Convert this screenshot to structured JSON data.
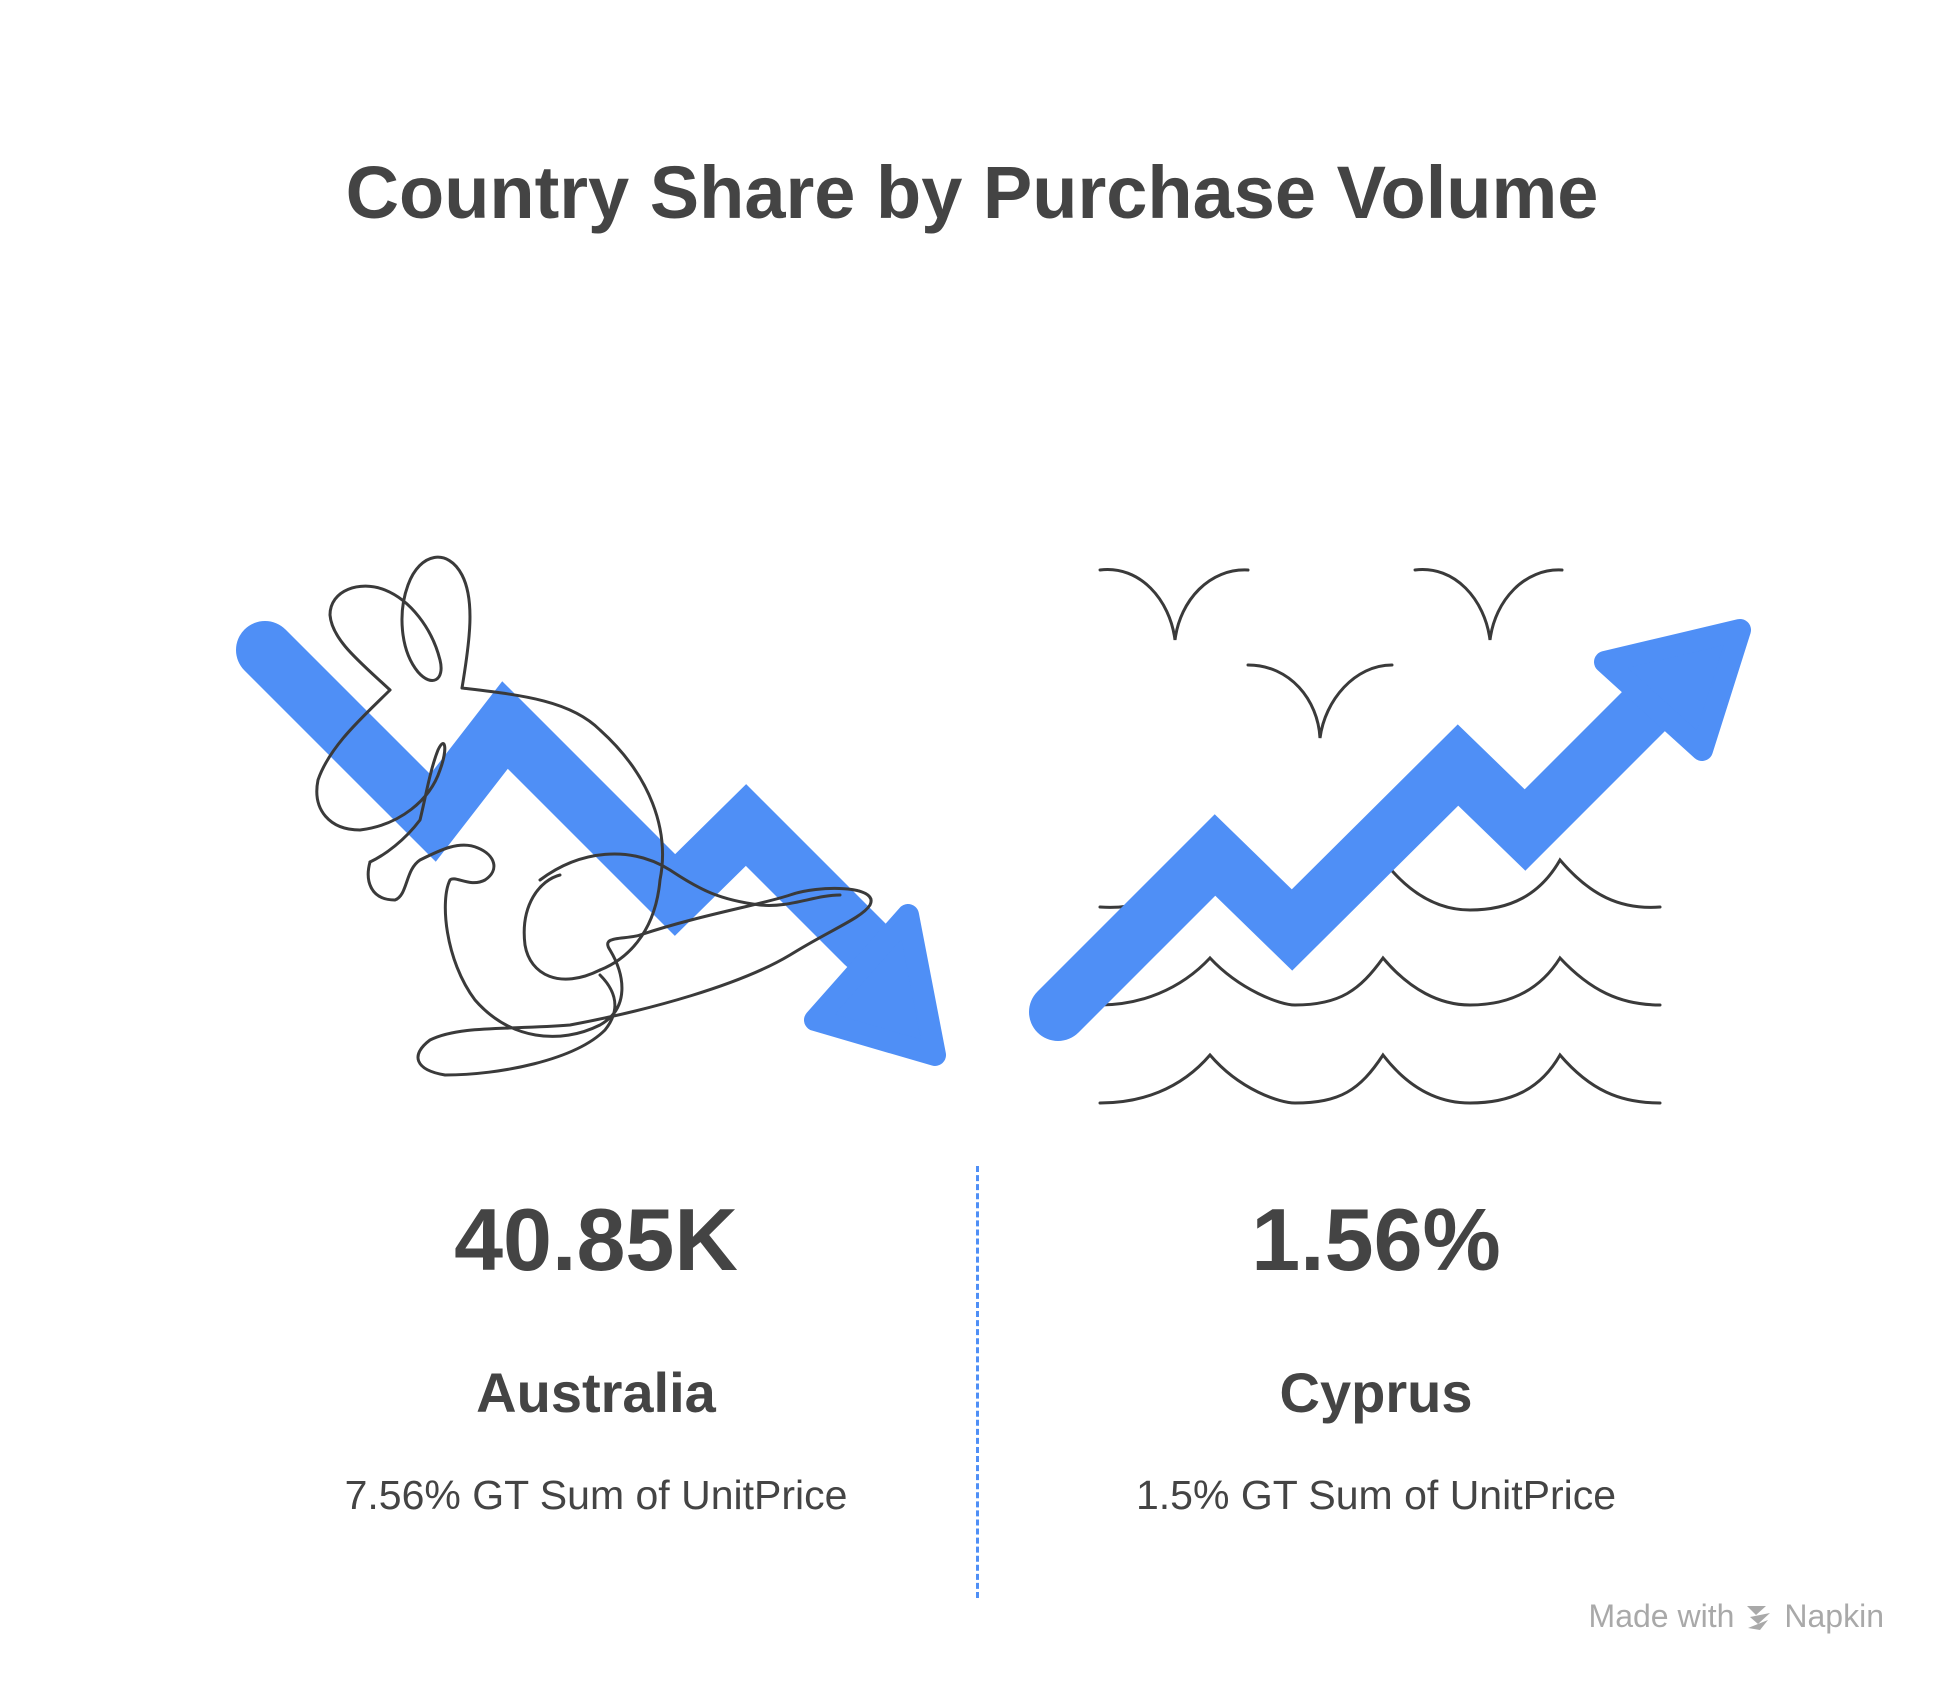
{
  "title": "Country Share by Purchase Volume",
  "colors": {
    "accent": "#4f8ff6",
    "text": "#444444",
    "line": "#3a3a3a",
    "watermark": "#a9a9a9"
  },
  "panels": [
    {
      "value": "40.85K",
      "country": "Australia",
      "metric": "7.56% GT Sum of UnitPrice",
      "trend": "down",
      "illustration": "kangaroo-icon"
    },
    {
      "value": "1.56%",
      "country": "Cyprus",
      "metric": "1.5% GT Sum of UnitPrice",
      "trend": "up",
      "illustration": "sea-waves-birds-icon"
    }
  ],
  "watermark": {
    "made_with": "Made with",
    "brand": "Napkin"
  }
}
